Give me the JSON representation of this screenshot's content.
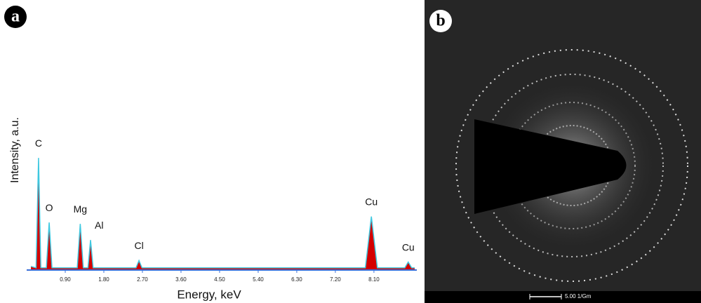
{
  "chart_data": {
    "type": "area",
    "panel_label": "a",
    "x_label": "Energy, keV",
    "y_label": "Intensity, a.u.",
    "x": [
      0.1,
      0.22,
      0.277,
      0.33,
      0.46,
      0.525,
      0.59,
      1.18,
      1.25,
      1.32,
      1.43,
      1.49,
      1.55,
      2.55,
      2.62,
      2.69,
      7.9,
      8.04,
      8.18,
      8.82,
      8.9,
      8.98,
      9.05
    ],
    "series": [
      {
        "color": "#d40000",
        "values": [
          2,
          1,
          76,
          1,
          1,
          32,
          1,
          1,
          31,
          1,
          1,
          20,
          1,
          1,
          6,
          1,
          1,
          36,
          1,
          1,
          5,
          1,
          1
        ]
      }
    ],
    "peak_labels": [
      "C",
      "O",
      "Mg",
      "Al",
      "Cl",
      "Cu",
      "Cu"
    ],
    "xlim": [
      0,
      9.1
    ],
    "ylim": [
      0,
      100
    ],
    "xticks": [
      {
        "value": 0.9,
        "label": "0.90"
      },
      {
        "value": 1.8,
        "label": "1.80"
      },
      {
        "value": 2.7,
        "label": "2.70"
      },
      {
        "value": 3.6,
        "label": "3.60"
      },
      {
        "value": 4.5,
        "label": "4.50"
      },
      {
        "value": 5.4,
        "label": "5.40"
      },
      {
        "value": 6.3,
        "label": "6.30"
      },
      {
        "value": 7.2,
        "label": "7.20"
      },
      {
        "value": 8.1,
        "label": "8.10"
      }
    ]
  },
  "image": {
    "panel_label": "b",
    "scale_bar": "5.00 1/Gm"
  }
}
